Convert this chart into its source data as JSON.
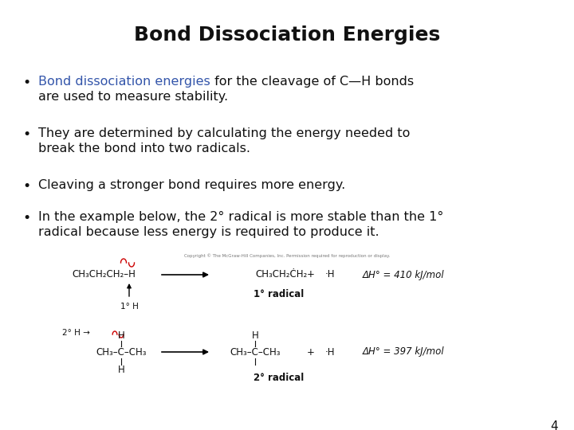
{
  "title": "Bond Dissociation Energies",
  "title_fontsize": 18,
  "background_color": "#ffffff",
  "highlight_color": "#3355aa",
  "bullet_fontsize": 11.5,
  "chem_fontsize": 8.5,
  "page_number": "4",
  "copyright": "Copyright © The McGraw-Hill Companies, Inc. Permission required for reproduction or display.",
  "bullets": [
    {
      "colored": "Bond dissociation energies",
      "rest": " for the cleavage of C—H bonds\nare used to measure stability."
    },
    {
      "colored": "",
      "rest": "They are determined by calculating the energy needed to\nbreak the bond into two radicals."
    },
    {
      "colored": "",
      "rest": "Cleaving a stronger bond requires more energy."
    },
    {
      "colored": "",
      "rest": "In the example below, the 2° radical is more stable than the 1°\nradical because less energy is required to produce it."
    }
  ],
  "r1_reactant": "CH₃CH₂CH₂–H",
  "r1_product1": "CH₃CH₂ĊH₂",
  "r1_plus": "+",
  "r1_product2": "·H",
  "r1_dh": "ΔH° = 410 kJ/mol",
  "r1_label": "1° radical",
  "r1_sublabel": "1° H",
  "r2_top_label": "2° H",
  "r2_reactant": "CH₃–Ċ–CH₃",
  "r2_H_top": "H",
  "r2_H_bottom": "H",
  "r2_product": "CH₃–Ċ–CH₃",
  "r2_pH_top": "H",
  "r2_plus": "+",
  "r2_product2": "·H",
  "r2_dh": "ΔH° = 397 kJ/mol",
  "r2_label": "2° radical"
}
